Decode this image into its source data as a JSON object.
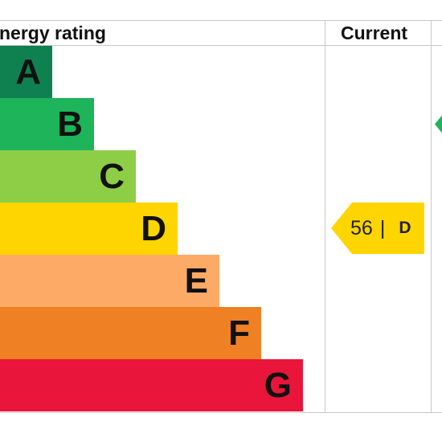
{
  "header": {
    "rating_label": "nergy rating",
    "current_label": "Current"
  },
  "chart_data": {
    "type": "bar",
    "title": "",
    "categories": [
      "A",
      "B",
      "C",
      "D",
      "E",
      "F",
      "G"
    ],
    "colors": [
      "#0f8150",
      "#1db45a",
      "#8dce46",
      "#ffd500",
      "#fcaa65",
      "#ef8023",
      "#e9153b"
    ],
    "current": {
      "value": 56,
      "separator": "|",
      "band": "D"
    },
    "potential_band": "B"
  }
}
